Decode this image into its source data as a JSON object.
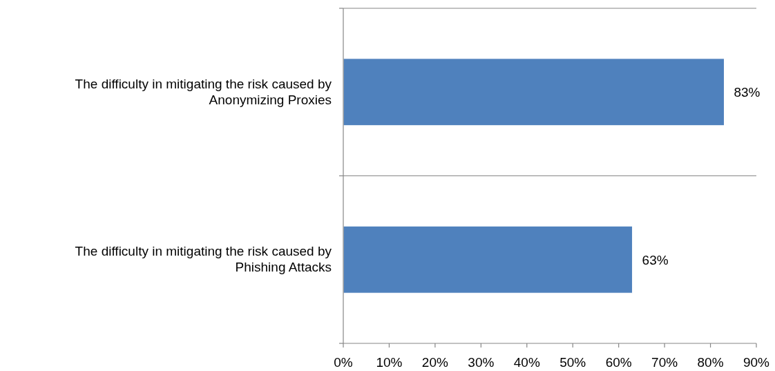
{
  "chart_data": {
    "type": "bar",
    "orientation": "horizontal",
    "categories": [
      "The difficulty in mitigating the risk caused by Anonymizing Proxies",
      "The difficulty in mitigating the risk caused by Phishing Attacks"
    ],
    "values": [
      83,
      63
    ],
    "value_labels": [
      "83%",
      "63%"
    ],
    "color": "#4f81bd",
    "xlim": [
      0,
      90
    ],
    "xticks": [
      {
        "value": 0,
        "label": "0%"
      },
      {
        "value": 10,
        "label": "10%"
      },
      {
        "value": 20,
        "label": "20%"
      },
      {
        "value": 30,
        "label": "30%"
      },
      {
        "value": 40,
        "label": "40%"
      },
      {
        "value": 50,
        "label": "50%"
      },
      {
        "value": 60,
        "label": "60%"
      },
      {
        "value": 70,
        "label": "70%"
      },
      {
        "value": 80,
        "label": "80%"
      },
      {
        "value": 90,
        "label": "90%"
      }
    ],
    "grid": "y"
  }
}
